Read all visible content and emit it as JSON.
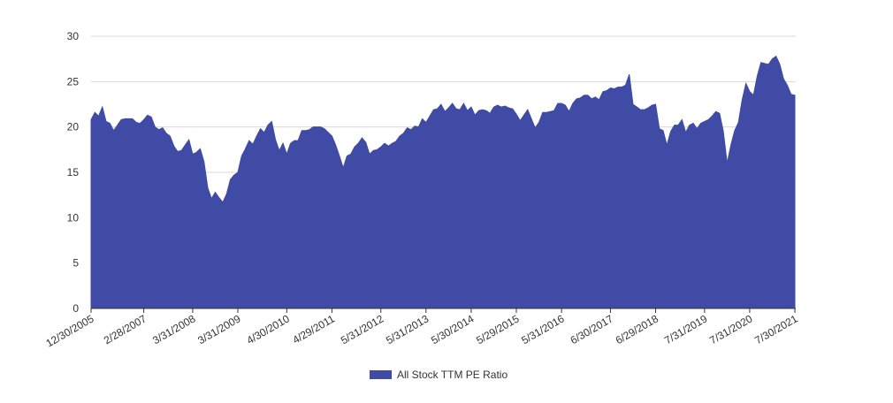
{
  "chart_data": {
    "type": "area",
    "categories": [
      "12/30/2005",
      null,
      null,
      null,
      null,
      null,
      null,
      null,
      null,
      null,
      null,
      null,
      null,
      null,
      "2/28/2007",
      null,
      null,
      null,
      null,
      null,
      null,
      null,
      null,
      null,
      null,
      null,
      null,
      "3/31/2008",
      null,
      null,
      null,
      null,
      null,
      null,
      null,
      null,
      null,
      null,
      null,
      "3/31/2009",
      null,
      null,
      null,
      null,
      null,
      null,
      null,
      null,
      null,
      null,
      null,
      null,
      "4/30/2010",
      null,
      null,
      null,
      null,
      null,
      null,
      null,
      null,
      null,
      null,
      null,
      "4/29/2011",
      null,
      null,
      null,
      null,
      null,
      null,
      null,
      null,
      null,
      null,
      null,
      null,
      "5/31/2012",
      null,
      null,
      null,
      null,
      null,
      null,
      null,
      null,
      null,
      null,
      null,
      "5/31/2013",
      null,
      null,
      null,
      null,
      null,
      null,
      null,
      null,
      null,
      null,
      null,
      "5/30/2014",
      null,
      null,
      null,
      null,
      null,
      null,
      null,
      null,
      null,
      null,
      null,
      "5/29/2015",
      null,
      null,
      null,
      null,
      null,
      null,
      null,
      null,
      null,
      null,
      null,
      "5/31/2016",
      null,
      null,
      null,
      null,
      null,
      null,
      null,
      null,
      null,
      null,
      null,
      null,
      "6/30/2017",
      null,
      null,
      null,
      null,
      null,
      null,
      null,
      null,
      null,
      null,
      null,
      "6/29/2018",
      null,
      null,
      null,
      null,
      null,
      null,
      null,
      null,
      null,
      null,
      null,
      null,
      "7/31/2019",
      null,
      null,
      null,
      null,
      null,
      null,
      null,
      null,
      null,
      null,
      null,
      "7/31/2020",
      null,
      null,
      null,
      null,
      null,
      null,
      null,
      null,
      null,
      null,
      null,
      "7/30/2021"
    ],
    "series": [
      {
        "name": "All Stock TTM PE Ratio",
        "color": "#3f4ba5",
        "values": [
          20.8,
          21.6,
          21.2,
          22.2,
          20.6,
          20.4,
          19.6,
          20.2,
          20.8,
          20.9,
          20.9,
          20.9,
          20.5,
          20.4,
          20.8,
          21.3,
          21.1,
          20.0,
          19.7,
          19.9,
          19.3,
          19.0,
          17.9,
          17.3,
          17.4,
          18.0,
          18.6,
          17.0,
          17.2,
          17.6,
          16.2,
          13.3,
          12.1,
          12.8,
          12.2,
          11.7,
          12.6,
          14.2,
          14.7,
          15.0,
          16.8,
          17.6,
          18.5,
          18.1,
          19.0,
          19.8,
          19.4,
          20.2,
          20.6,
          18.6,
          17.4,
          18.2,
          17.0,
          18.2,
          18.5,
          18.5,
          19.6,
          19.6,
          19.7,
          20.0,
          20.0,
          20.0,
          19.8,
          19.4,
          19.0,
          18.0,
          16.8,
          15.5,
          16.8,
          17.0,
          17.8,
          18.2,
          18.8,
          18.3,
          17.0,
          17.4,
          17.5,
          17.8,
          18.2,
          17.9,
          18.2,
          18.4,
          19.0,
          19.3,
          19.9,
          19.7,
          20.1,
          20.0,
          20.9,
          20.5,
          21.2,
          21.9,
          22.0,
          22.5,
          21.7,
          22.1,
          22.6,
          22.0,
          21.9,
          22.6,
          21.8,
          22.2,
          21.3,
          21.8,
          21.9,
          21.8,
          21.5,
          22.2,
          22.4,
          22.2,
          22.3,
          22.1,
          22.0,
          21.4,
          20.7,
          21.3,
          21.9,
          20.9,
          19.9,
          20.5,
          21.6,
          21.6,
          21.7,
          21.8,
          22.6,
          22.6,
          22.4,
          21.7,
          22.6,
          23.1,
          23.2,
          23.5,
          23.5,
          23.1,
          23.3,
          23.0,
          23.9,
          24.0,
          24.3,
          24.2,
          24.4,
          24.4,
          24.6,
          25.8,
          22.5,
          22.2,
          21.9,
          21.9,
          22.1,
          22.4,
          22.5,
          19.8,
          19.6,
          18.0,
          19.5,
          20.2,
          20.2,
          20.8,
          19.4,
          20.2,
          20.4,
          19.8,
          20.4,
          20.6,
          20.8,
          21.2,
          21.7,
          21.5,
          19.5,
          16.0,
          18.0,
          19.6,
          20.5,
          23.0,
          24.8,
          23.9,
          23.5,
          25.6,
          27.1,
          27.0,
          26.9,
          27.5,
          27.8,
          26.9,
          25.3,
          24.6,
          23.6,
          23.5
        ]
      }
    ],
    "ylim": [
      0,
      30
    ],
    "yticks": [
      0,
      5,
      10,
      15,
      20,
      25,
      30
    ],
    "grid": true,
    "legend": "bottom"
  }
}
